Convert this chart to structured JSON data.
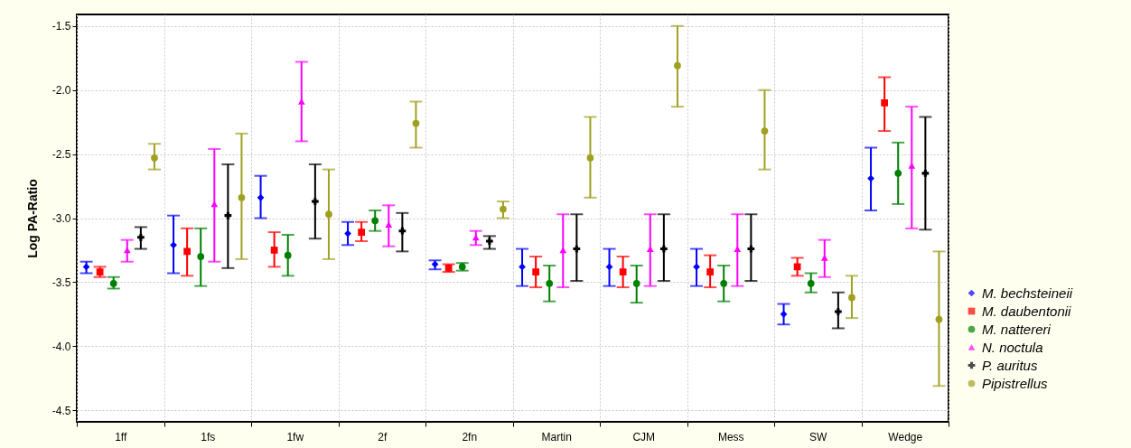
{
  "chart_data": {
    "type": "scatter",
    "ylabel": "Log PA-Ratio",
    "categories": [
      "1ff",
      "1fs",
      "1fw",
      "2f",
      "2fn",
      "Martin",
      "CJM",
      "Mess",
      "SW",
      "Wedge"
    ],
    "ylim": [
      -4.59,
      -1.41
    ],
    "yticks": [
      -1.5,
      {
        "value": -2,
        "label": "-2.0"
      },
      -2.5,
      {
        "value": -3,
        "label": "-3.0"
      },
      -3.5,
      {
        "value": -4,
        "label": "-4.0"
      },
      -4.5
    ],
    "grid": true,
    "legend": "bottom right",
    "series": [
      {
        "name": "M. bechsteineii",
        "color": "#0000ff",
        "marker": "diamond",
        "values": [
          -3.38,
          -3.21,
          -2.84,
          -3.12,
          -3.36,
          -3.38,
          -3.38,
          -3.38,
          -3.75,
          -2.69
        ],
        "errors": [
          [
            -3.43,
            -3.34
          ],
          [
            -3.43,
            -2.98
          ],
          [
            -3.0,
            -2.67
          ],
          [
            -3.21,
            -3.03
          ],
          [
            -3.4,
            -3.33
          ],
          [
            -3.53,
            -3.24
          ],
          [
            -3.53,
            -3.24
          ],
          [
            -3.53,
            -3.24
          ],
          [
            -3.83,
            -3.67
          ],
          [
            -2.94,
            -2.45
          ]
        ]
      },
      {
        "name": "M. daubentonii",
        "color": "#ff0000",
        "marker": "square",
        "values": [
          -3.42,
          -3.26,
          -3.25,
          -3.11,
          -3.39,
          -3.42,
          -3.42,
          -3.42,
          -3.38,
          -2.1
        ],
        "errors": [
          [
            -3.46,
            -3.38
          ],
          [
            -3.45,
            -3.08
          ],
          [
            -3.38,
            -3.11
          ],
          [
            -3.18,
            -3.03
          ],
          [
            -3.42,
            -3.36
          ],
          [
            -3.54,
            -3.3
          ],
          [
            -3.54,
            -3.3
          ],
          [
            -3.54,
            -3.29
          ],
          [
            -3.45,
            -3.31
          ],
          [
            -2.32,
            -1.9
          ]
        ]
      },
      {
        "name": "M. nattereri",
        "color": "#008000",
        "marker": "circle",
        "values": [
          -3.51,
          -3.3,
          -3.29,
          -3.02,
          -3.38,
          -3.51,
          -3.51,
          -3.51,
          -3.51,
          -2.65
        ],
        "errors": [
          [
            -3.55,
            -3.46
          ],
          [
            -3.53,
            -3.08
          ],
          [
            -3.45,
            -3.13
          ],
          [
            -3.1,
            -2.94
          ],
          [
            -3.41,
            -3.35
          ],
          [
            -3.65,
            -3.37
          ],
          [
            -3.66,
            -3.37
          ],
          [
            -3.65,
            -3.37
          ],
          [
            -3.58,
            -3.43
          ],
          [
            -2.89,
            -2.41
          ]
        ]
      },
      {
        "name": "N. noctula",
        "color": "#ff00ff",
        "marker": "triangle",
        "values": [
          -3.25,
          -2.89,
          -2.09,
          -3.05,
          -3.15,
          -3.25,
          -3.24,
          -3.24,
          -3.31,
          -2.59
        ],
        "errors": [
          [
            -3.34,
            -3.17
          ],
          [
            -3.34,
            -2.46
          ],
          [
            -2.4,
            -1.78
          ],
          [
            -3.22,
            -2.9
          ],
          [
            -3.21,
            -3.1
          ],
          [
            -3.54,
            -2.97
          ],
          [
            -3.53,
            -2.97
          ],
          [
            -3.53,
            -2.97
          ],
          [
            -3.46,
            -3.17
          ],
          [
            -3.08,
            -2.13
          ]
        ]
      },
      {
        "name": "P. auritus",
        "color": "#000000",
        "marker": "cross",
        "values": [
          -3.15,
          -2.98,
          -2.87,
          -3.1,
          -3.18,
          -3.24,
          -3.24,
          -3.24,
          -3.73,
          -2.65
        ],
        "errors": [
          [
            -3.24,
            -3.07
          ],
          [
            -3.39,
            -2.58
          ],
          [
            -3.16,
            -2.58
          ],
          [
            -3.26,
            -2.96
          ],
          [
            -3.24,
            -3.14
          ],
          [
            -3.49,
            -2.97
          ],
          [
            -3.49,
            -2.97
          ],
          [
            -3.49,
            -2.97
          ],
          [
            -3.86,
            -3.58
          ],
          [
            -3.09,
            -2.21
          ]
        ]
      },
      {
        "name": "Pipistrellus",
        "color": "#a0a020",
        "marker": "circle",
        "values": [
          -2.53,
          -2.84,
          -2.97,
          -2.26,
          -2.93,
          -2.53,
          -1.81,
          -2.32,
          -3.62,
          -3.79
        ],
        "errors": [
          [
            -2.62,
            -2.42
          ],
          [
            -3.32,
            -2.34
          ],
          [
            -3.32,
            -2.62
          ],
          [
            -2.45,
            -2.09
          ],
          [
            -3.0,
            -2.87
          ],
          [
            -2.84,
            -2.21
          ],
          [
            -2.13,
            -1.5
          ],
          [
            -2.62,
            -2.0
          ],
          [
            -3.78,
            -3.45
          ],
          [
            -4.31,
            -3.26
          ]
        ]
      }
    ]
  }
}
